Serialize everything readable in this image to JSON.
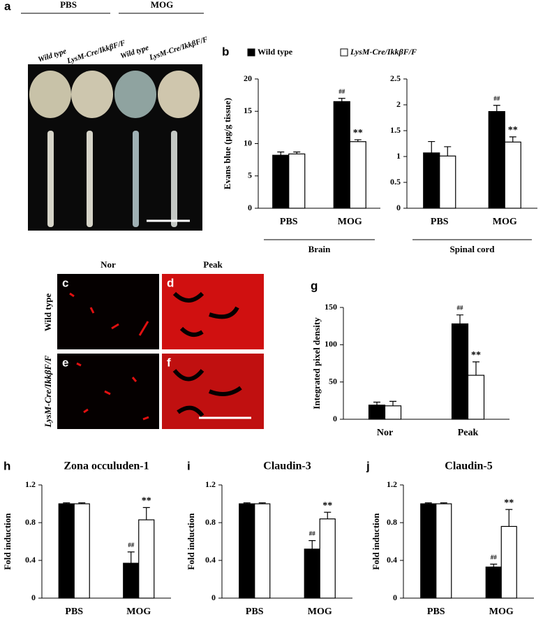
{
  "panel_a": {
    "letter": "a",
    "groups": [
      "PBS",
      "MOG"
    ],
    "columns": [
      "Wild type",
      "LysM-Cre/IkkβF/F",
      "Wild type",
      "LysM-Cre/IkkβF/F"
    ]
  },
  "panel_cf": {
    "letters": [
      "c",
      "d",
      "e",
      "f"
    ],
    "columns": [
      "Nor",
      "Peak"
    ],
    "rows": [
      "Wild type",
      "LysM-Cre/IkkβF/F"
    ]
  },
  "chart_data": [
    {
      "type": "bar",
      "panel": "b",
      "ylabel": "Evans blue (μg/g tissue)",
      "group_label": "Brain",
      "categories": [
        "PBS",
        "MOG"
      ],
      "ylim": [
        0,
        20
      ],
      "yticks": [
        0,
        5,
        10,
        15,
        20
      ],
      "series": [
        {
          "name": "Wild type",
          "color": "#000000",
          "values": [
            8.2,
            16.5
          ],
          "errors": [
            0.5,
            0.5
          ],
          "marks": [
            null,
            "##"
          ]
        },
        {
          "name": "LysM-Cre/IkkβF/F",
          "color": "#ffffff",
          "values": [
            8.4,
            10.3
          ],
          "errors": [
            0.3,
            0.3
          ],
          "marks": [
            null,
            "**"
          ]
        }
      ]
    },
    {
      "type": "bar",
      "group_label": "Spinal cord",
      "categories": [
        "PBS",
        "MOG"
      ],
      "ylim": [
        0,
        2.5
      ],
      "yticks": [
        0,
        0.5,
        1,
        1.5,
        2,
        2.5
      ],
      "series": [
        {
          "color": "#000000",
          "values": [
            1.07,
            1.87
          ],
          "errors": [
            0.22,
            0.12
          ],
          "marks": [
            null,
            "##"
          ]
        },
        {
          "color": "#ffffff",
          "values": [
            1.01,
            1.28
          ],
          "errors": [
            0.18,
            0.1
          ],
          "marks": [
            null,
            "**"
          ]
        }
      ]
    },
    {
      "type": "bar",
      "panel": "g",
      "ylabel": "Integrated pixel density",
      "categories": [
        "Nor",
        "Peak"
      ],
      "ylim": [
        0,
        150
      ],
      "yticks": [
        0,
        50,
        100,
        150
      ],
      "series": [
        {
          "color": "#000000",
          "values": [
            19,
            128
          ],
          "errors": [
            4,
            12
          ],
          "marks": [
            null,
            "##"
          ]
        },
        {
          "color": "#ffffff",
          "values": [
            18,
            59
          ],
          "errors": [
            6,
            18
          ],
          "marks": [
            null,
            "**"
          ]
        }
      ]
    },
    {
      "type": "bar",
      "panel": "h",
      "title": "Zona occuluden-1",
      "ylabel": "Fold induction",
      "categories": [
        "PBS",
        "MOG"
      ],
      "ylim": [
        0,
        1.2
      ],
      "yticks": [
        0,
        0.4,
        0.8,
        1.2
      ],
      "series": [
        {
          "color": "#000000",
          "values": [
            1.0,
            0.37
          ],
          "errors": [
            0.01,
            0.12
          ],
          "marks": [
            null,
            "##"
          ]
        },
        {
          "color": "#ffffff",
          "values": [
            1.0,
            0.83
          ],
          "errors": [
            0.01,
            0.13
          ],
          "marks": [
            null,
            "**"
          ]
        }
      ]
    },
    {
      "type": "bar",
      "panel": "i",
      "title": "Claudin-3",
      "ylabel": "Fold induction",
      "categories": [
        "PBS",
        "MOG"
      ],
      "ylim": [
        0,
        1.2
      ],
      "yticks": [
        0,
        0.4,
        0.8,
        1.2
      ],
      "series": [
        {
          "color": "#000000",
          "values": [
            1.0,
            0.52
          ],
          "errors": [
            0.01,
            0.09
          ],
          "marks": [
            null,
            "##"
          ]
        },
        {
          "color": "#ffffff",
          "values": [
            1.0,
            0.84
          ],
          "errors": [
            0.01,
            0.07
          ],
          "marks": [
            null,
            "**"
          ]
        }
      ]
    },
    {
      "type": "bar",
      "panel": "j",
      "title": "Claudin-5",
      "ylabel": "Fold induction",
      "categories": [
        "PBS",
        "MOG"
      ],
      "ylim": [
        0,
        1.2
      ],
      "yticks": [
        0,
        0.4,
        0.8,
        1.2
      ],
      "series": [
        {
          "color": "#000000",
          "values": [
            1.0,
            0.33
          ],
          "errors": [
            0.01,
            0.03
          ],
          "marks": [
            null,
            "##"
          ]
        },
        {
          "color": "#ffffff",
          "values": [
            1.0,
            0.76
          ],
          "errors": [
            0.01,
            0.18
          ],
          "marks": [
            null,
            "**"
          ]
        }
      ]
    }
  ]
}
